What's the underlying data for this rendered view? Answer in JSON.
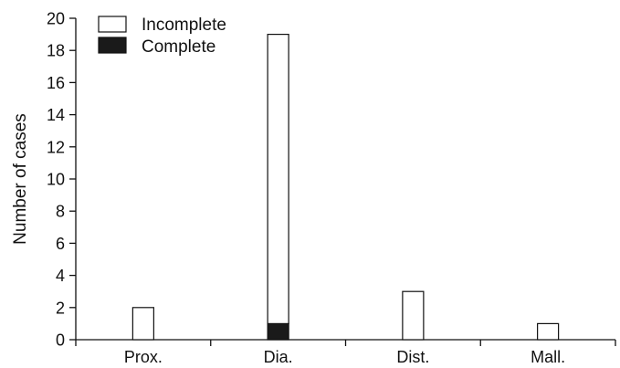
{
  "chart_data": {
    "type": "bar",
    "stacked": true,
    "categories": [
      "Prox.",
      "Dia.",
      "Dist.",
      "Mall."
    ],
    "series": [
      {
        "name": "Complete",
        "values": [
          0,
          1,
          0,
          0
        ],
        "color": "#1a1a1a"
      },
      {
        "name": "Incomplete",
        "values": [
          2,
          18,
          3,
          1
        ],
        "color": "#ffffff"
      }
    ],
    "title": "",
    "xlabel": "",
    "ylabel": "Number of cases",
    "ylim": [
      0,
      20
    ],
    "yticks": [
      0,
      2,
      4,
      6,
      8,
      10,
      12,
      14,
      16,
      18,
      20
    ],
    "grid": false,
    "legend_position": "top-left"
  }
}
